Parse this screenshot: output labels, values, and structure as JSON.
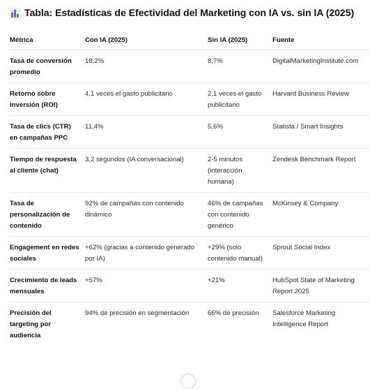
{
  "title": {
    "icon": "bar-chart-icon",
    "text": "Tabla: Estadísticas de Efectividad del Marketing con IA vs. sin IA (2025)"
  },
  "table": {
    "headers": [
      "Métrica",
      "Con IA (2025)",
      "Sin IA (2025)",
      "Fuente"
    ],
    "rows": [
      {
        "metric": "Tasa de conversión promedio",
        "con_ia": "18,2%",
        "sin_ia": "8,7%",
        "fuente": "DigitalMarketingInstitute.com"
      },
      {
        "metric": "Retorno sobre inversión (ROI)",
        "con_ia": "4,1 veces el gasto publicitario",
        "sin_ia": "2,1 veces el gasto publicitario",
        "fuente": "Harvard Business Review"
      },
      {
        "metric": "Tasa de clics (CTR) en campañas PPC",
        "con_ia": "11,4%",
        "sin_ia": "5,6%",
        "fuente": "Statista / Smart Insights"
      },
      {
        "metric": "Tiempo de respuesta al cliente (chat)",
        "con_ia": "3,2 segundos (IA conversacional)",
        "sin_ia": "2-5 minutos (interacción humana)",
        "fuente": "Zendesk Benchmark Report"
      },
      {
        "metric": "Tasa de personalización de contenido",
        "con_ia": "92% de campañas con contenido dinámico",
        "sin_ia": "46% de campañas con contenido genérico",
        "fuente": "McKinsey & Company"
      },
      {
        "metric": "Engagement en redes sociales",
        "con_ia": "+62% (gracias a contenido generado por IA)",
        "sin_ia": "+29% (solo contenido manual)",
        "fuente": "Sprout Social Index"
      },
      {
        "metric": "Crecimiento de leads mensuales",
        "con_ia": "+57%",
        "sin_ia": "+21%",
        "fuente": "HubSpot State of Marketing Report 2025"
      },
      {
        "metric": "Precisión del targeting por audiencia",
        "con_ia": "94% de precisión en segmentación",
        "sin_ia": "66% de precisión",
        "fuente": "Salesforce Marketing Intelligence Report"
      }
    ]
  },
  "colors": {
    "icon_bar_red": "#e0463c",
    "icon_bar_blue": "#3b7ddd",
    "icon_bar_green": "#3fa34d"
  }
}
